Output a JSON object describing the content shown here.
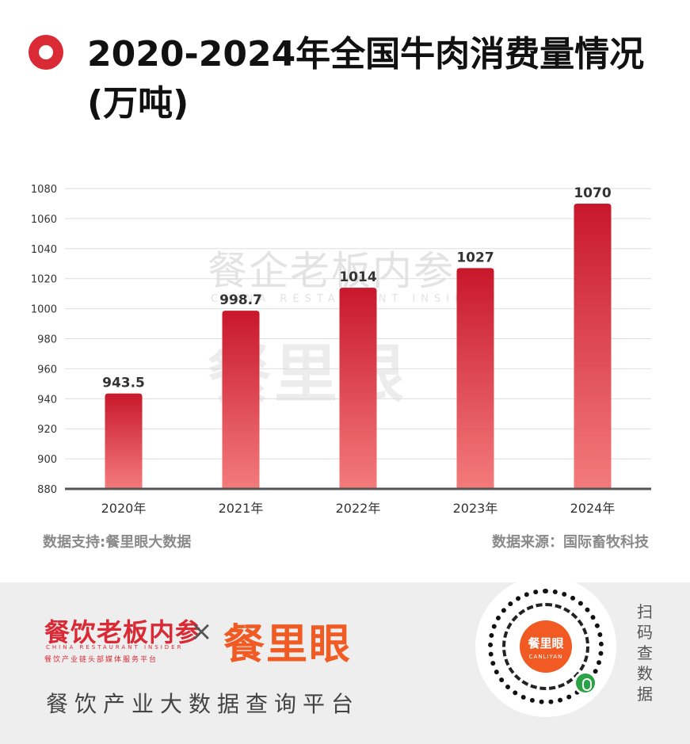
{
  "title": "2020-2024年全国牛肉消费量情况(万吨)",
  "watermark": {
    "cn": "餐企老板内参",
    "en": "CHINA RESTAURANT INSIDER",
    "brand": "餐里眼"
  },
  "source_left": "数据支持:餐里眼大数据",
  "source_right": "数据来源：国际畜牧科技",
  "footer": {
    "brand1": "餐饮老板内参",
    "brand1_en": "CHINA RESTAURANT INSIDER",
    "brand1_sub": "餐饮产业链头部媒体服务平台",
    "times": "×",
    "brand2": "餐里眼",
    "slogan": "餐饮产业大数据查询平台",
    "qr_center": "餐里眼",
    "qr_center_en": "CANLIYAN",
    "scan_text": "扫码查数据"
  },
  "colors": {
    "accent": "#d92a35",
    "bar_top": "#c8182b",
    "bar_bottom": "#f47b7b",
    "brand_orange": "#f15a22"
  },
  "icons": {
    "title_marker": "ring-icon",
    "qr_badge": "mini-program-icon"
  },
  "chart_data": {
    "type": "bar",
    "categories": [
      "2020年",
      "2021年",
      "2022年",
      "2023年",
      "2024年"
    ],
    "values": [
      943.5,
      998.7,
      1014,
      1027,
      1070
    ],
    "value_labels": [
      "943.5",
      "998.7",
      "1014",
      "1027",
      "1070"
    ],
    "ylim": [
      880,
      1080
    ],
    "yticks": [
      880,
      900,
      920,
      940,
      960,
      980,
      1000,
      1020,
      1040,
      1060,
      1080
    ],
    "grid": true,
    "legend": "none"
  }
}
